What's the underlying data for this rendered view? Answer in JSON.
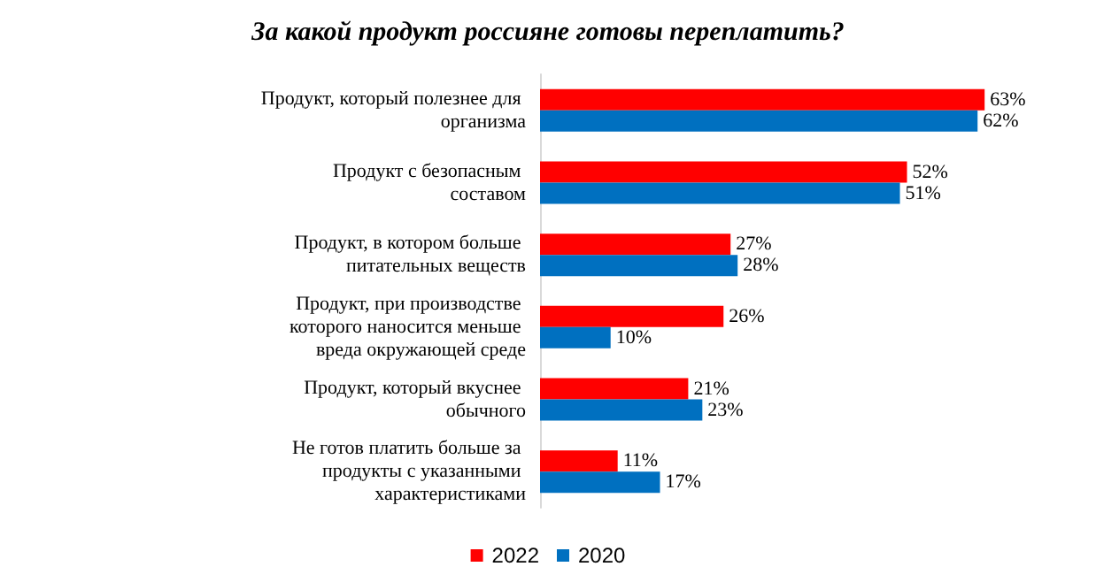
{
  "chart_data": {
    "type": "bar",
    "orientation": "horizontal",
    "title": "За какой продукт россияне готовы переплатить?",
    "categories": [
      "Продукт, который полезнее для организма",
      "Продукт с безопасным составом",
      "Продукт, в котором больше питательных веществ",
      "Продукт, при производстве которого наносится меньше вреда окружающей среде",
      "Продукт, который вкуснее обычного",
      "Не готов платить больше за продукты с указанными характеристиками"
    ],
    "series": [
      {
        "name": "2022",
        "color": "#ff0000",
        "values": [
          63,
          52,
          27,
          26,
          21,
          11
        ],
        "value_labels": [
          "63%",
          "52%",
          "27%",
          "26%",
          "21%",
          "11%"
        ]
      },
      {
        "name": "2020",
        "color": "#0070c0",
        "values": [
          62,
          51,
          28,
          10,
          23,
          17
        ],
        "value_labels": [
          "62%",
          "51%",
          "28%",
          "10%",
          "23%",
          "17%"
        ]
      }
    ],
    "legend": "bottom"
  }
}
